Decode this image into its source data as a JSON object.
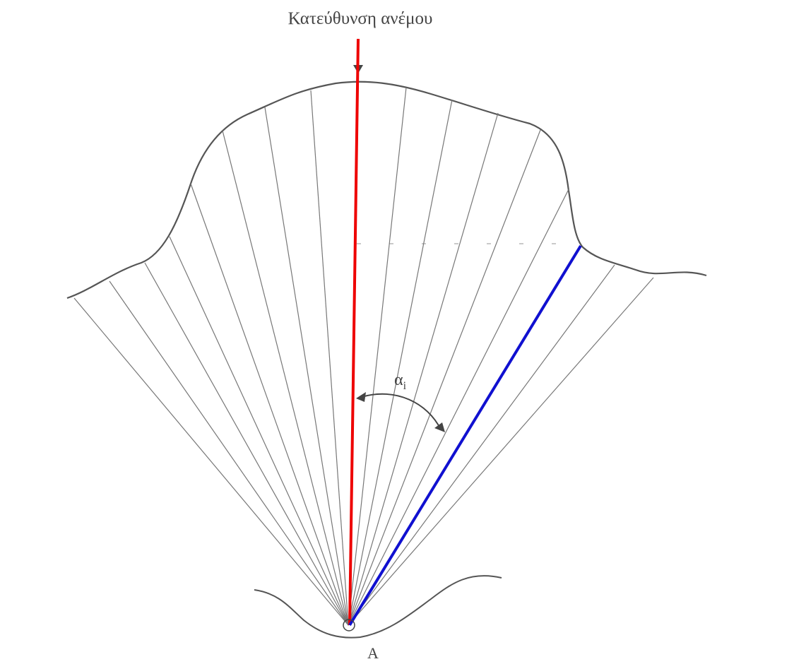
{
  "title": "Κατεύθυνση ανέμου",
  "angle_label": {
    "symbol": "α",
    "subscript": "i"
  },
  "point_label": "A"
}
